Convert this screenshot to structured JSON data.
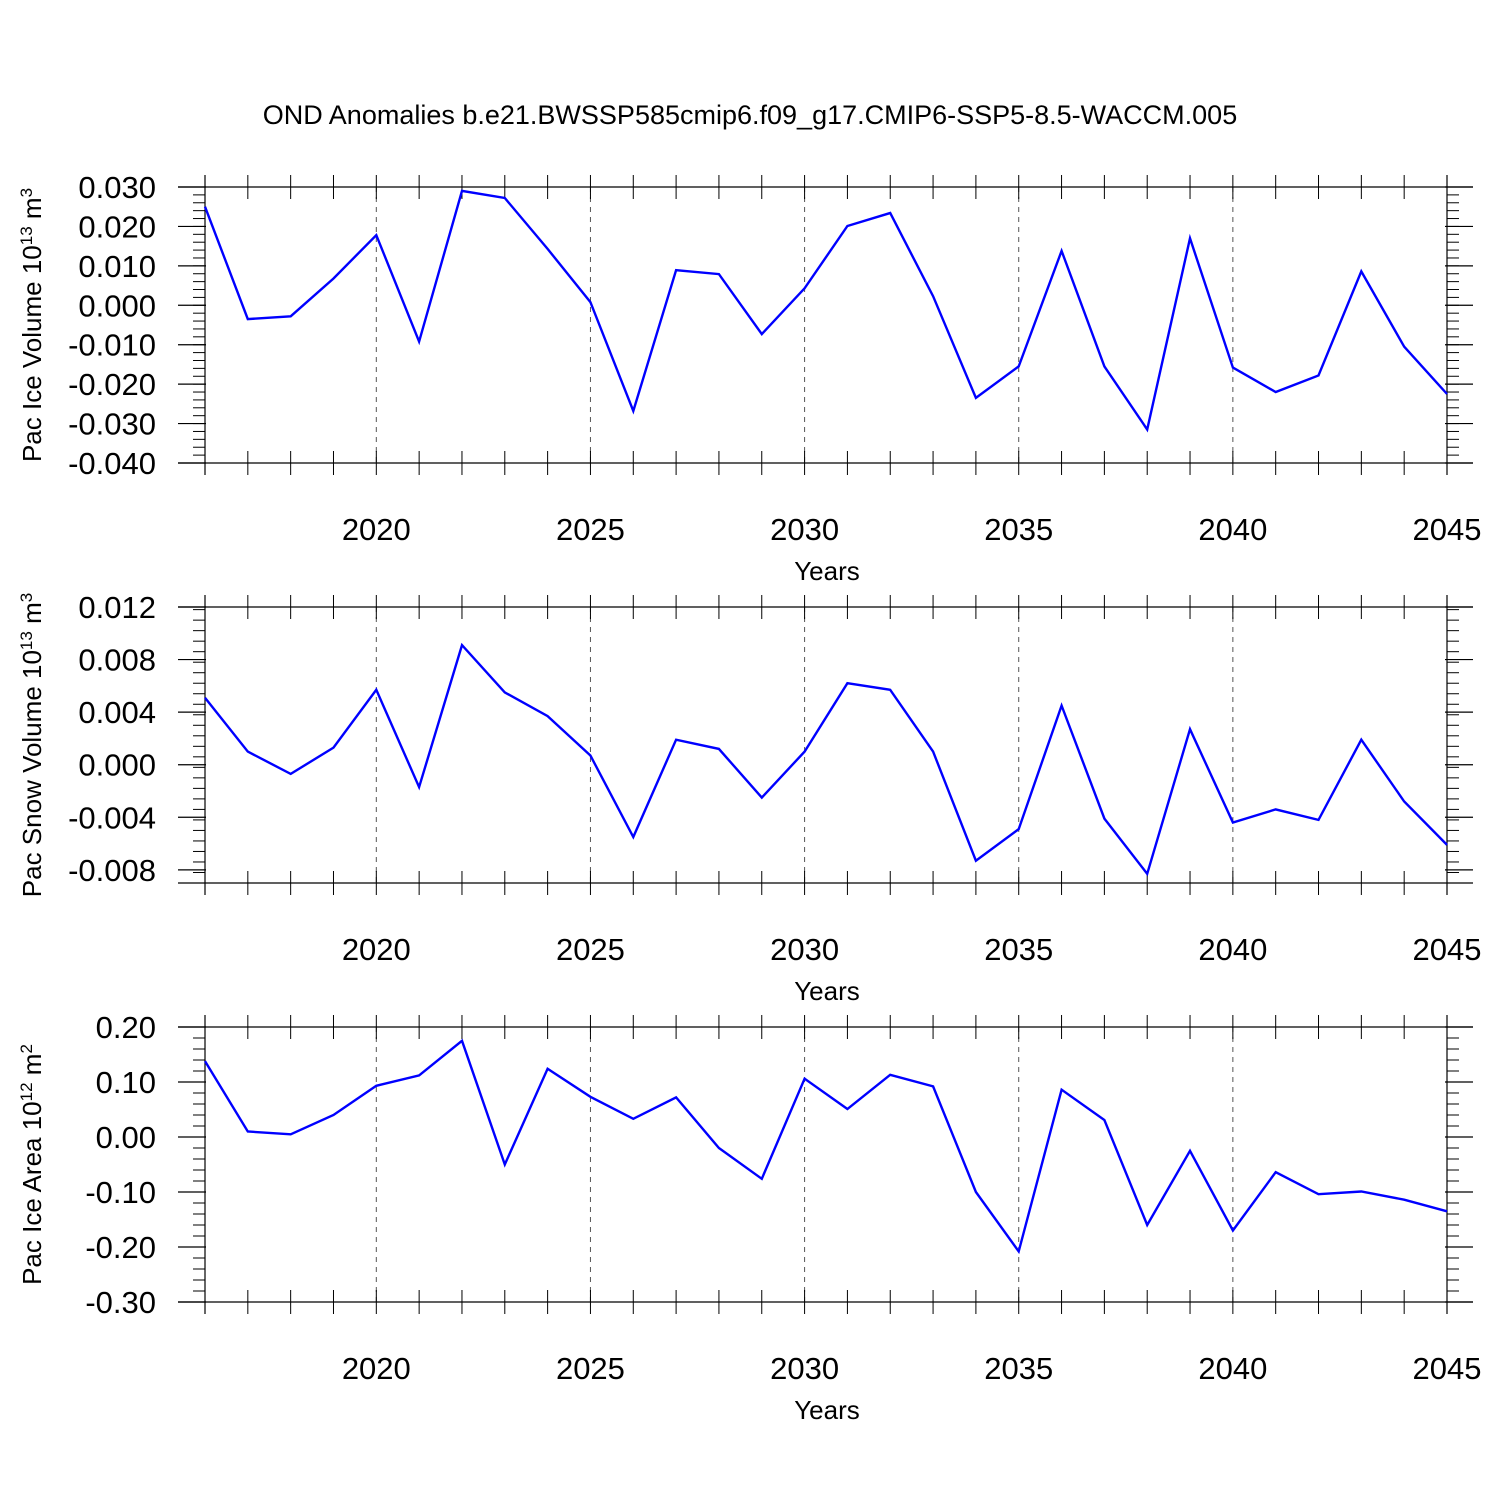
{
  "title": "OND Anomalies b.e21.BWSSP585cmip6.f09_g17.CMIP6-SSP5-8.5-WACCM.005",
  "colors": {
    "line": "#0000ff",
    "axis": "#000000",
    "grid": "#555555"
  },
  "chart_data": [
    {
      "type": "line",
      "ylabel": "Pac Ice Volume 10",
      "ylabel_exp": "13",
      "ylabel_unit": " m",
      "ylabel_unit_exp": "3",
      "xlabel": "Years",
      "xlim": [
        2016,
        2045
      ],
      "ylim": [
        -0.04,
        0.03
      ],
      "yticks": [
        "0.030",
        "0.020",
        "0.010",
        "0.000",
        "-0.010",
        "-0.020",
        "-0.030",
        "-0.040"
      ],
      "xticks": [
        "2020",
        "2025",
        "2030",
        "2035",
        "2040",
        "2045"
      ],
      "x": [
        2016,
        2017,
        2018,
        2019,
        2020,
        2021,
        2022,
        2023,
        2024,
        2025,
        2026,
        2027,
        2028,
        2029,
        2030,
        2031,
        2032,
        2033,
        2034,
        2035,
        2036,
        2037,
        2038,
        2039,
        2040,
        2041,
        2042,
        2043,
        2044,
        2045
      ],
      "values": [
        0.025,
        -0.0035,
        -0.0028,
        0.0068,
        0.0178,
        -0.0092,
        0.029,
        0.0272,
        0.0143,
        0.0008,
        -0.0268,
        0.0089,
        0.0079,
        -0.0073,
        0.0043,
        0.0201,
        0.0234,
        0.0023,
        -0.0235,
        -0.0155,
        0.0138,
        -0.0155,
        -0.0315,
        0.017,
        -0.0158,
        -0.022,
        -0.0178,
        0.0086,
        -0.0105,
        -0.0225
      ]
    },
    {
      "type": "line",
      "ylabel": "Pac Snow Volume 10",
      "ylabel_exp": "13",
      "ylabel_unit": " m",
      "ylabel_unit_exp": "3",
      "xlabel": "Years",
      "xlim": [
        2016,
        2045
      ],
      "ylim": [
        -0.009,
        0.012
      ],
      "yticks": [
        "0.012",
        "0.008",
        "0.004",
        "0.000",
        "-0.004",
        "-0.008"
      ],
      "xticks": [
        "2020",
        "2025",
        "2030",
        "2035",
        "2040",
        "2045"
      ],
      "x": [
        2016,
        2017,
        2018,
        2019,
        2020,
        2021,
        2022,
        2023,
        2024,
        2025,
        2026,
        2027,
        2028,
        2029,
        2030,
        2031,
        2032,
        2033,
        2034,
        2035,
        2036,
        2037,
        2038,
        2039,
        2040,
        2041,
        2042,
        2043,
        2044,
        2045
      ],
      "values": [
        0.0051,
        0.001,
        -0.0007,
        0.0013,
        0.0057,
        -0.0017,
        0.0091,
        0.0055,
        0.0037,
        0.0007,
        -0.0055,
        0.0019,
        0.0012,
        -0.0025,
        0.001,
        0.0062,
        0.0057,
        0.001,
        -0.0073,
        -0.0049,
        0.0045,
        -0.0041,
        -0.0083,
        0.0027,
        -0.0044,
        -0.0034,
        -0.0042,
        0.0019,
        -0.0028,
        -0.0061
      ]
    },
    {
      "type": "line",
      "ylabel": "Pac Ice Area 10",
      "ylabel_exp": "12",
      "ylabel_unit": " m",
      "ylabel_unit_exp": "2",
      "xlabel": "Years",
      "xlim": [
        2016,
        2045
      ],
      "ylim": [
        -0.3,
        0.2
      ],
      "yticks": [
        "0.20",
        "0.10",
        "0.00",
        "-0.10",
        "-0.20",
        "-0.30"
      ],
      "xticks": [
        "2020",
        "2025",
        "2030",
        "2035",
        "2040",
        "2045"
      ],
      "x": [
        2016,
        2017,
        2018,
        2019,
        2020,
        2021,
        2022,
        2023,
        2024,
        2025,
        2026,
        2027,
        2028,
        2029,
        2030,
        2031,
        2032,
        2033,
        2034,
        2035,
        2036,
        2037,
        2038,
        2039,
        2040,
        2041,
        2042,
        2043,
        2044,
        2045
      ],
      "values": [
        0.138,
        0.01,
        0.005,
        0.04,
        0.093,
        0.112,
        0.175,
        -0.05,
        0.124,
        0.073,
        0.033,
        0.072,
        -0.02,
        -0.076,
        0.106,
        0.051,
        0.113,
        0.092,
        -0.1,
        -0.208,
        0.086,
        0.031,
        -0.16,
        -0.025,
        -0.17,
        -0.064,
        -0.104,
        -0.099,
        -0.114,
        -0.135
      ]
    }
  ]
}
